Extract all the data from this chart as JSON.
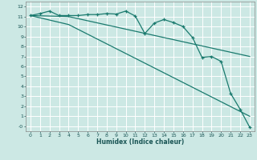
{
  "xlabel": "Humidex (Indice chaleur)",
  "bg_color": "#cce8e4",
  "grid_color": "#ffffff",
  "line_color": "#1a7a6e",
  "xlim": [
    -0.5,
    23.5
  ],
  "ylim": [
    -0.5,
    12.5
  ],
  "xticks": [
    0,
    1,
    2,
    3,
    4,
    5,
    6,
    7,
    8,
    9,
    10,
    11,
    12,
    13,
    14,
    15,
    16,
    17,
    18,
    19,
    20,
    21,
    22,
    23
  ],
  "yticks": [
    0,
    1,
    2,
    3,
    4,
    5,
    6,
    7,
    8,
    9,
    10,
    11,
    12
  ],
  "line1_x": [
    0,
    1,
    2,
    3,
    4,
    5,
    6,
    7,
    8,
    9,
    10,
    11,
    12,
    13,
    14,
    15,
    16,
    17,
    18,
    19,
    20,
    21,
    22,
    23
  ],
  "line1_y": [
    11.1,
    11.3,
    11.55,
    11.1,
    11.1,
    11.1,
    11.2,
    11.2,
    11.3,
    11.25,
    11.55,
    11.05,
    9.3,
    10.35,
    10.7,
    10.4,
    10.0,
    8.9,
    6.9,
    7.0,
    6.5,
    3.3,
    1.7,
    -0.1
  ],
  "line2_x": [
    0,
    4,
    23
  ],
  "line2_y": [
    11.1,
    11.0,
    7.0
  ],
  "line3_x": [
    0,
    4,
    23
  ],
  "line3_y": [
    11.1,
    10.2,
    1.0
  ]
}
